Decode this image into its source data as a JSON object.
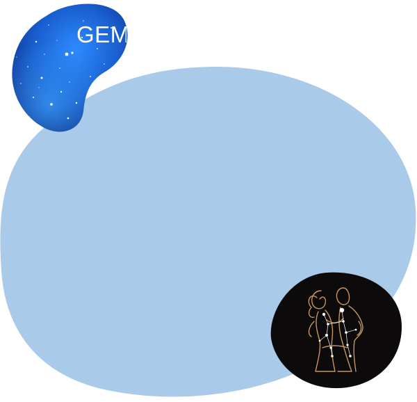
{
  "sign": {
    "name": "GEMINI",
    "zodiac_icon": "gemini-twins-constellation-icon",
    "starfield_icon": "starry-sky-icon"
  },
  "colors": {
    "background": "#ffffff",
    "main_blob": "#a9cbe9",
    "space_deep": "#06154a",
    "space_blue": "#1a66d8",
    "badge_background": "#0c0a0a",
    "badge_line": "#c9975e",
    "stars": "#ffffff"
  }
}
